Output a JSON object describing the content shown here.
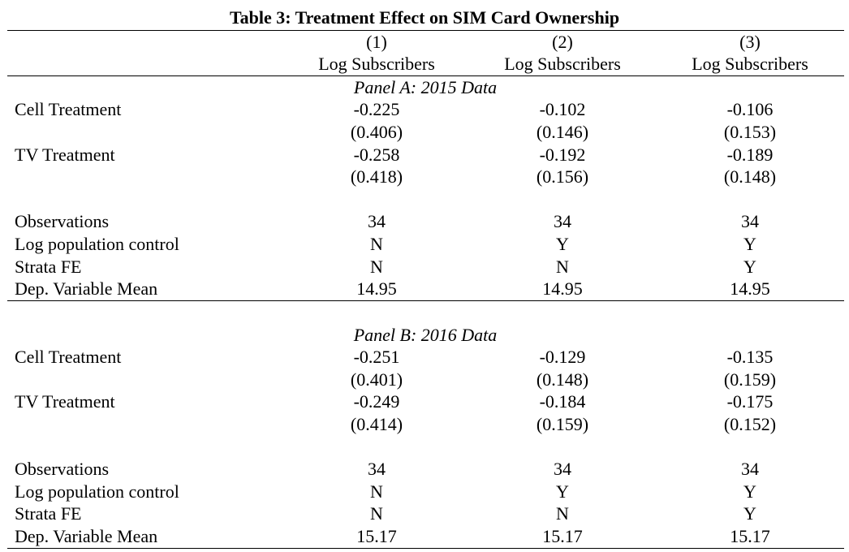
{
  "table": {
    "title": "Table 3: Treatment Effect on SIM Card Ownership",
    "col_numbers": [
      "(1)",
      "(2)",
      "(3)"
    ],
    "col_labels": [
      "Log Subscribers",
      "Log Subscribers",
      "Log Subscribers"
    ],
    "panel_a": {
      "title": "Panel A:  2015 Data",
      "rows": [
        {
          "label": "Cell Treatment",
          "values": [
            "-0.225",
            "-0.102",
            "-0.106"
          ]
        },
        {
          "label": "",
          "values": [
            "(0.406)",
            "(0.146)",
            "(0.153)"
          ]
        },
        {
          "label": "TV Treatment",
          "values": [
            "-0.258",
            "-0.192",
            "-0.189"
          ]
        },
        {
          "label": "",
          "values": [
            "(0.418)",
            "(0.156)",
            "(0.148)"
          ]
        },
        {
          "label": "Observations",
          "values": [
            "34",
            "34",
            "34"
          ]
        },
        {
          "label": "Log population control",
          "values": [
            "N",
            "Y",
            "Y"
          ]
        },
        {
          "label": "Strata FE",
          "values": [
            "N",
            "N",
            "Y"
          ]
        },
        {
          "label": "Dep. Variable Mean",
          "values": [
            "14.95",
            "14.95",
            "14.95"
          ]
        }
      ]
    },
    "panel_b": {
      "title": "Panel B:  2016 Data",
      "rows": [
        {
          "label": "Cell Treatment",
          "values": [
            "-0.251",
            "-0.129",
            "-0.135"
          ]
        },
        {
          "label": "",
          "values": [
            "(0.401)",
            "(0.148)",
            "(0.159)"
          ]
        },
        {
          "label": "TV Treatment",
          "values": [
            "-0.249",
            "-0.184",
            "-0.175"
          ]
        },
        {
          "label": "",
          "values": [
            "(0.414)",
            "(0.159)",
            "(0.152)"
          ]
        },
        {
          "label": "Observations",
          "values": [
            "34",
            "34",
            "34"
          ]
        },
        {
          "label": "Log population control",
          "values": [
            "N",
            "Y",
            "Y"
          ]
        },
        {
          "label": "Strata FE",
          "values": [
            "N",
            "N",
            "Y"
          ]
        },
        {
          "label": "Dep. Variable Mean",
          "values": [
            "15.17",
            "15.17",
            "15.17"
          ]
        }
      ]
    }
  }
}
